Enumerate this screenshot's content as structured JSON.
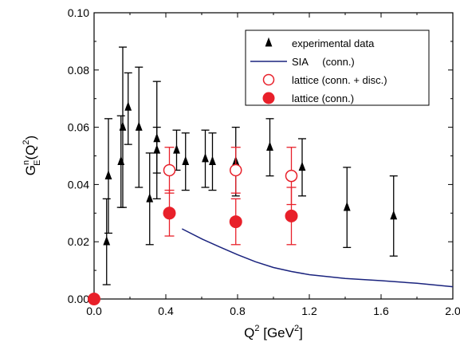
{
  "chart_data": {
    "type": "scatter",
    "title": "",
    "xlabel": {
      "base": "Q",
      "sup": "2",
      "rest": " [GeV",
      "unit_sup": "2",
      "end": "]"
    },
    "ylabel": {
      "base": "G",
      "sup": "n",
      "sub": "E",
      "open": "(Q",
      "arg_sup": "2",
      "close": ")"
    },
    "xlim": [
      0.0,
      2.0
    ],
    "ylim": [
      0.0,
      0.1
    ],
    "xticks": [
      "0.0",
      "0.4",
      "0.8",
      "1.2",
      "1.6",
      "2.0"
    ],
    "yticks": [
      "0.00",
      "0.02",
      "0.04",
      "0.06",
      "0.08",
      "0.10"
    ],
    "grid": false,
    "legend_position": "top-right",
    "colors": {
      "experimental": "#000000",
      "sia": "#1a237e",
      "lattice": "#e8202a"
    },
    "series": [
      {
        "name": "experimental data",
        "marker": "triangle",
        "points": [
          {
            "x": 0.07,
            "y": 0.02,
            "lo": 0.005,
            "hi": 0.035
          },
          {
            "x": 0.08,
            "y": 0.043,
            "lo": 0.023,
            "hi": 0.063
          },
          {
            "x": 0.15,
            "y": 0.048,
            "lo": 0.032,
            "hi": 0.064
          },
          {
            "x": 0.16,
            "y": 0.06,
            "lo": 0.032,
            "hi": 0.088
          },
          {
            "x": 0.19,
            "y": 0.067,
            "lo": 0.054,
            "hi": 0.079
          },
          {
            "x": 0.25,
            "y": 0.06,
            "lo": 0.039,
            "hi": 0.081
          },
          {
            "x": 0.31,
            "y": 0.035,
            "lo": 0.019,
            "hi": 0.051
          },
          {
            "x": 0.35,
            "y": 0.056,
            "lo": 0.035,
            "hi": 0.076
          },
          {
            "x": 0.35,
            "y": 0.052,
            "lo": 0.044,
            "hi": 0.06
          },
          {
            "x": 0.46,
            "y": 0.052,
            "lo": 0.045,
            "hi": 0.059
          },
          {
            "x": 0.51,
            "y": 0.048,
            "lo": 0.038,
            "hi": 0.058
          },
          {
            "x": 0.62,
            "y": 0.049,
            "lo": 0.039,
            "hi": 0.059
          },
          {
            "x": 0.66,
            "y": 0.048,
            "lo": 0.038,
            "hi": 0.058
          },
          {
            "x": 0.79,
            "y": 0.048,
            "lo": 0.036,
            "hi": 0.06
          },
          {
            "x": 0.98,
            "y": 0.053,
            "lo": 0.043,
            "hi": 0.063
          },
          {
            "x": 1.16,
            "y": 0.046,
            "lo": 0.036,
            "hi": 0.056
          },
          {
            "x": 1.41,
            "y": 0.032,
            "lo": 0.018,
            "hi": 0.046
          },
          {
            "x": 1.67,
            "y": 0.029,
            "lo": 0.015,
            "hi": 0.043
          }
        ]
      },
      {
        "name": "SIA     (conn.)",
        "marker": "line",
        "x": [
          0.49,
          0.6,
          0.7,
          0.8,
          0.9,
          1.0,
          1.1,
          1.2,
          1.4,
          1.6,
          1.8,
          2.0
        ],
        "y": [
          0.0245,
          0.021,
          0.0182,
          0.0155,
          0.013,
          0.011,
          0.0096,
          0.0085,
          0.0072,
          0.0064,
          0.0055,
          0.0043
        ]
      },
      {
        "name": "lattice (conn. + disc.)",
        "marker": "open-circle",
        "points": [
          {
            "x": 0.42,
            "y": 0.045,
            "lo": 0.037,
            "hi": 0.053
          },
          {
            "x": 0.79,
            "y": 0.045,
            "lo": 0.037,
            "hi": 0.053
          },
          {
            "x": 1.1,
            "y": 0.043,
            "lo": 0.033,
            "hi": 0.053
          }
        ]
      },
      {
        "name": "lattice (conn.)",
        "marker": "filled-circle",
        "points": [
          {
            "x": 0.0,
            "y": 0.0,
            "lo": 0.0,
            "hi": 0.0
          },
          {
            "x": 0.42,
            "y": 0.03,
            "lo": 0.022,
            "hi": 0.038
          },
          {
            "x": 0.79,
            "y": 0.027,
            "lo": 0.019,
            "hi": 0.035
          },
          {
            "x": 1.1,
            "y": 0.029,
            "lo": 0.019,
            "hi": 0.039
          }
        ]
      }
    ]
  }
}
